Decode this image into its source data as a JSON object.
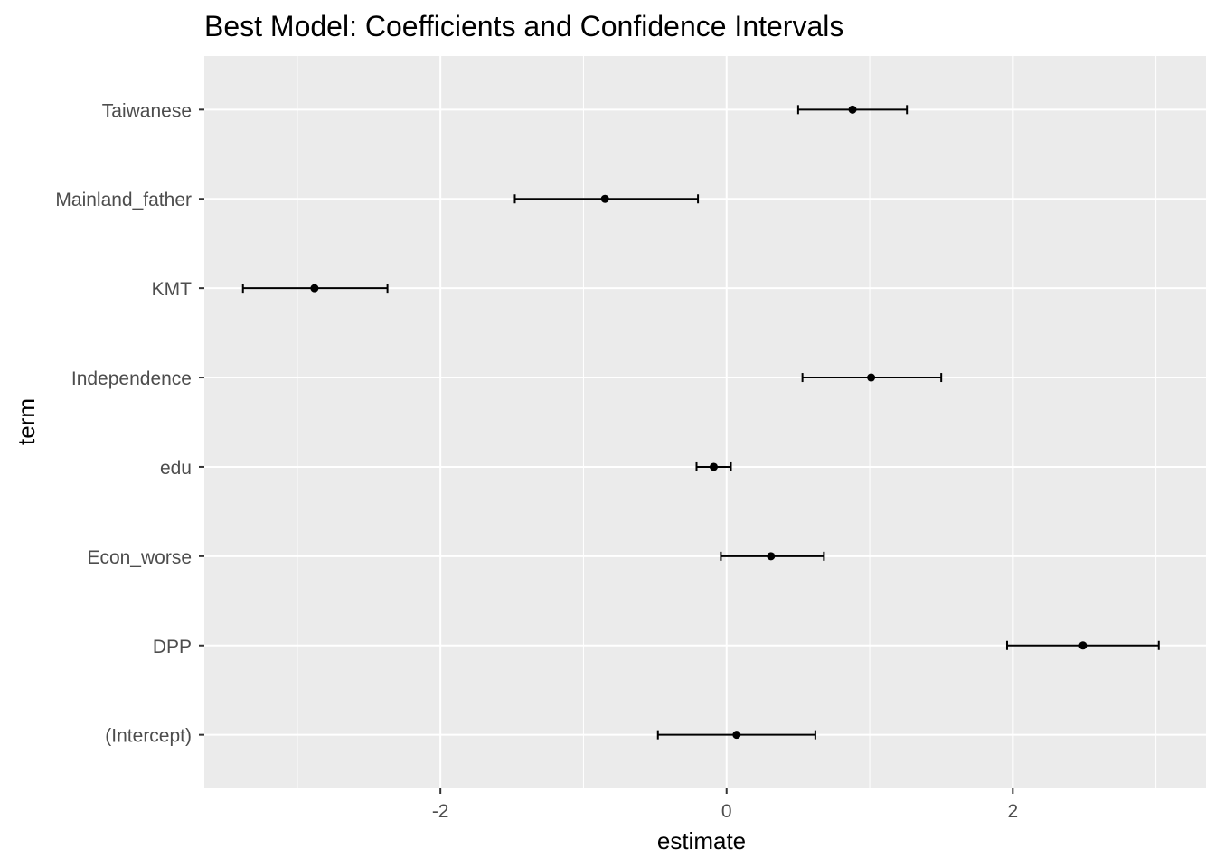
{
  "chart_data": {
    "type": "errorbar-dot",
    "title": "Best Model: Coefficients and Confidence Intervals",
    "xlabel": "estimate",
    "ylabel": "term",
    "xlim": [
      -3.65,
      3.35
    ],
    "xticks": [
      -2,
      0,
      2
    ],
    "xtick_labels": [
      "-2",
      "0",
      "2"
    ],
    "categories": [
      "Taiwanese",
      "Mainland_father",
      "KMT",
      "Independence",
      "edu",
      "Econ_worse",
      "DPP",
      "(Intercept)"
    ],
    "estimates": [
      0.88,
      -0.85,
      -2.88,
      1.01,
      -0.09,
      0.31,
      2.49,
      0.07
    ],
    "lower": [
      0.5,
      -1.48,
      -3.38,
      0.53,
      -0.21,
      -0.04,
      1.96,
      -0.48
    ],
    "upper": [
      1.26,
      -0.2,
      -2.37,
      1.5,
      0.03,
      0.68,
      3.02,
      0.62
    ],
    "grid": true,
    "legend": "none",
    "colors": {
      "panel_background": "#ebebeb",
      "gridline": "#ffffff",
      "point": "#000000",
      "errorbar": "#000000",
      "tick_label": "#4d4d4d",
      "tick_mark": "#333333"
    }
  }
}
